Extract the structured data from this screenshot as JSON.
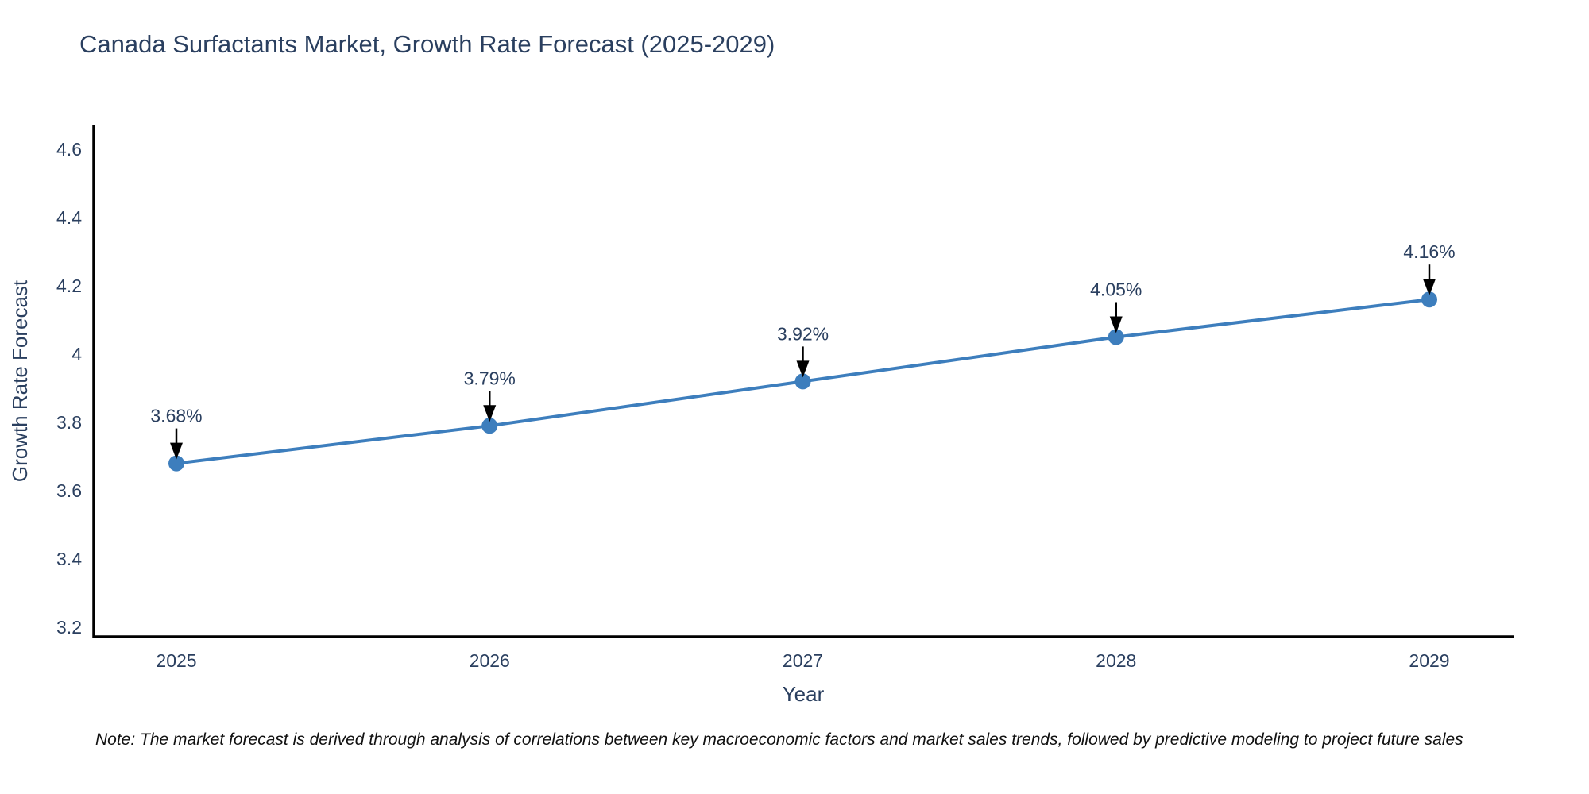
{
  "title": "Canada Surfactants Market, Growth Rate Forecast (2025-2029)",
  "note": "Note: The market forecast is derived through analysis of correlations between key macroeconomic factors and market sales trends, followed by predictive modeling to project future sales",
  "chart_data": {
    "type": "line",
    "title": "Canada Surfactants Market, Growth Rate Forecast (2025-2029)",
    "xlabel": "Year",
    "ylabel": "Growth Rate Forecast",
    "x": [
      2025,
      2026,
      2027,
      2028,
      2029
    ],
    "values": [
      3.68,
      3.79,
      3.92,
      4.05,
      4.16
    ],
    "point_labels": [
      "3.68%",
      "3.79%",
      "3.92%",
      "4.05%",
      "4.16%"
    ],
    "ylim": [
      3.2,
      4.6
    ],
    "y_ticks": [
      "3.2",
      "3.4",
      "3.6",
      "3.8",
      "4",
      "4.2",
      "4.4",
      "4.6"
    ],
    "grid": false,
    "legend_position": "none",
    "line_color": "#3d7ebd",
    "marker_color": "#3d7ebd",
    "arrow_color": "#000000",
    "axis_line_color": "#000000",
    "text_color": "#2a3f5f"
  }
}
